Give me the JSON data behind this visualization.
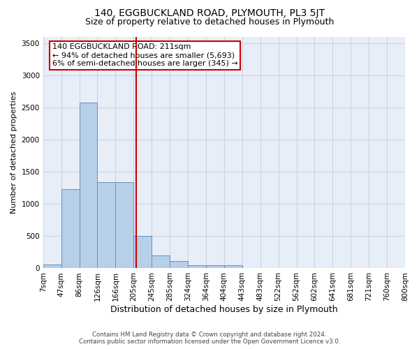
{
  "title": "140, EGGBUCKLAND ROAD, PLYMOUTH, PL3 5JT",
  "subtitle": "Size of property relative to detached houses in Plymouth",
  "xlabel": "Distribution of detached houses by size in Plymouth",
  "ylabel": "Number of detached properties",
  "bar_values": [
    60,
    1230,
    2580,
    1340,
    1340,
    500,
    200,
    110,
    50,
    50,
    50,
    0,
    0,
    0,
    0,
    0,
    0,
    0,
    0,
    0
  ],
  "categories": [
    "7sqm",
    "47sqm",
    "86sqm",
    "126sqm",
    "166sqm",
    "205sqm",
    "245sqm",
    "285sqm",
    "324sqm",
    "364sqm",
    "404sqm",
    "443sqm",
    "483sqm",
    "522sqm",
    "562sqm",
    "602sqm",
    "641sqm",
    "681sqm",
    "721sqm",
    "760sqm",
    "800sqm"
  ],
  "bar_color": "#b8cfe8",
  "bar_edge_color": "#6090c0",
  "vline_color": "#cc0000",
  "annotation_text": "140 EGGBUCKLAND ROAD: 211sqm\n← 94% of detached houses are smaller (5,693)\n6% of semi-detached houses are larger (345) →",
  "annotation_box_color": "#cc0000",
  "ylim": [
    0,
    3600
  ],
  "yticks": [
    0,
    500,
    1000,
    1500,
    2000,
    2500,
    3000,
    3500
  ],
  "grid_color": "#c8d4e8",
  "bg_color": "#e8eef8",
  "footer_line1": "Contains HM Land Registry data © Crown copyright and database right 2024.",
  "footer_line2": "Contains public sector information licensed under the Open Government Licence v3.0.",
  "title_fontsize": 10,
  "subtitle_fontsize": 9,
  "ylabel_fontsize": 8,
  "xlabel_fontsize": 9,
  "tick_fontsize": 7.5,
  "annotation_fontsize": 8
}
